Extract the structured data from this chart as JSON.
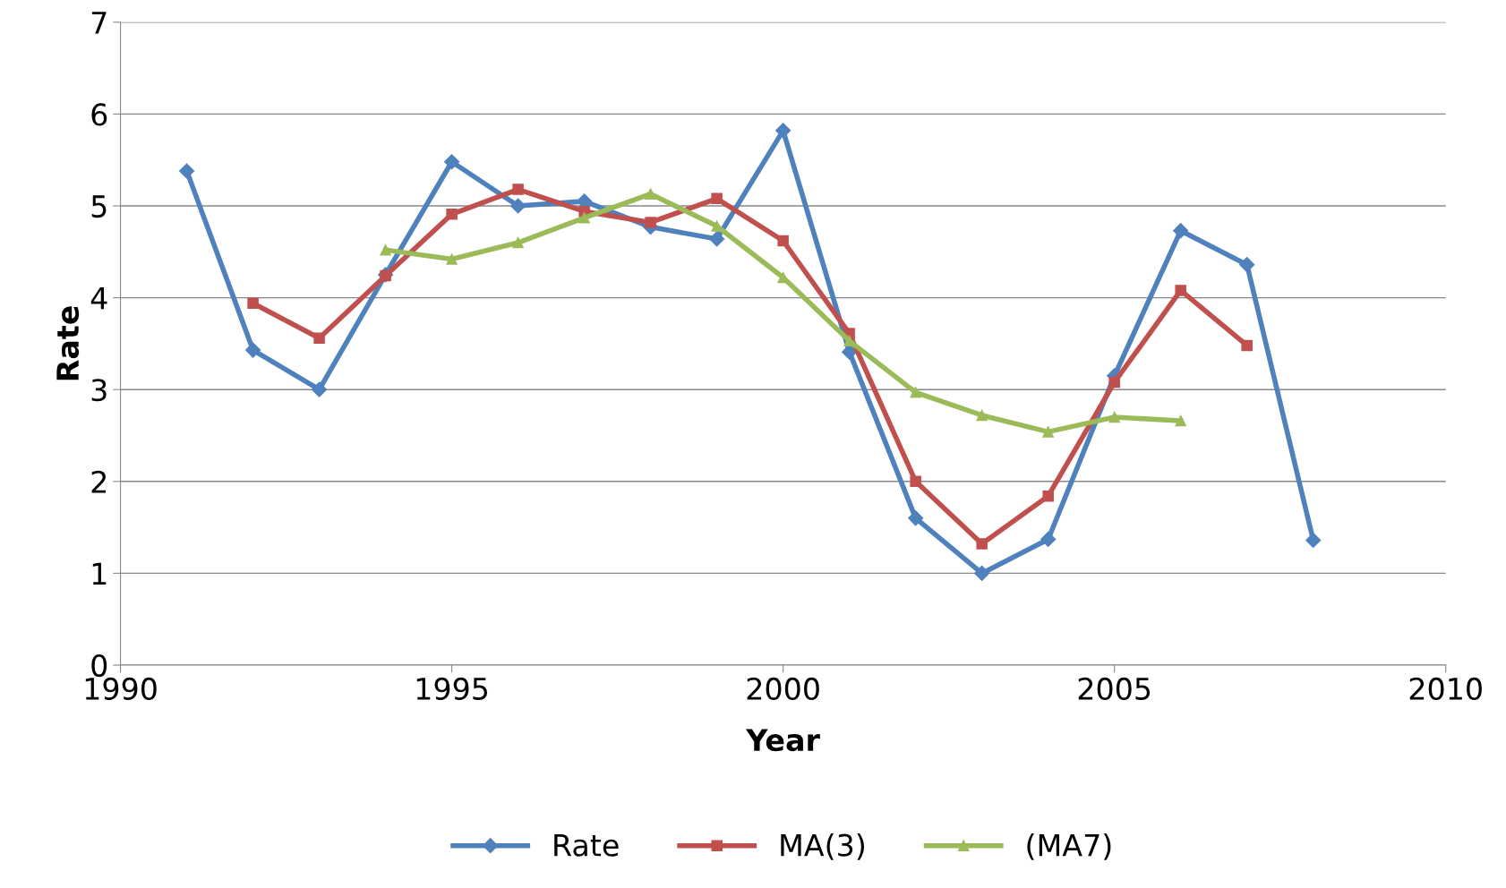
{
  "chart_data": {
    "type": "line",
    "xlabel": "Year",
    "ylabel": "Rate",
    "xlim": [
      1990,
      2010
    ],
    "xticks": [
      1990,
      1995,
      2000,
      2005,
      2010
    ],
    "ylim": [
      0,
      7
    ],
    "yticks": [
      0,
      1,
      2,
      3,
      4,
      5,
      6,
      7
    ],
    "grid": "y",
    "legend": "bottom",
    "line_style": "solid",
    "series": [
      {
        "name": "Rate",
        "color": "#4f81bd",
        "marker": "diamond",
        "x": [
          1991,
          1992,
          1993,
          1994,
          1995,
          1996,
          1997,
          1998,
          1999,
          2000,
          2001,
          2002,
          2003,
          2004,
          2005,
          2006,
          2007,
          2008
        ],
        "values": [
          5.38,
          3.43,
          3.0,
          4.25,
          5.48,
          5.0,
          5.05,
          4.77,
          4.64,
          5.82,
          3.41,
          1.6,
          1.0,
          1.37,
          3.15,
          4.73,
          4.36,
          1.36
        ]
      },
      {
        "name": "MA(3)",
        "color": "#c0504d",
        "marker": "square",
        "x": [
          1992,
          1993,
          1994,
          1995,
          1996,
          1997,
          1998,
          1999,
          2000,
          2001,
          2002,
          2003,
          2004,
          2005,
          2006,
          2007
        ],
        "values": [
          3.94,
          3.56,
          4.24,
          4.91,
          5.18,
          4.94,
          4.82,
          5.08,
          4.62,
          3.61,
          2.0,
          1.32,
          1.84,
          3.08,
          4.08,
          3.48
        ]
      },
      {
        "name": "(MA7)",
        "color": "#9bbb59",
        "marker": "triangle",
        "x": [
          1994,
          1995,
          1996,
          1997,
          1998,
          1999,
          2000,
          2001,
          2002,
          2003,
          2004,
          2005,
          2006
        ],
        "values": [
          4.52,
          4.42,
          4.6,
          4.87,
          5.13,
          4.78,
          4.22,
          3.53,
          2.97,
          2.72,
          2.54,
          2.7,
          2.66
        ]
      }
    ]
  }
}
